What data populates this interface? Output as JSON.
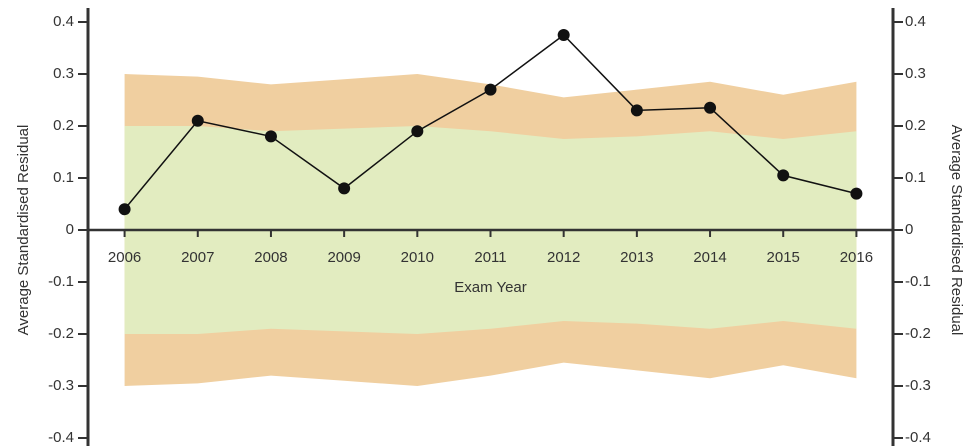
{
  "chart_data": {
    "type": "line",
    "xlabel": "Exam Year",
    "ylabel": "Average Standardised Residual",
    "y2label": "Average Standardised Residual",
    "x": [
      2006,
      2007,
      2008,
      2009,
      2010,
      2011,
      2012,
      2013,
      2014,
      2015,
      2016
    ],
    "xlim": [
      2005.5,
      2016.5
    ],
    "xticks": [
      2006,
      2007,
      2008,
      2009,
      2010,
      2011,
      2012,
      2013,
      2014,
      2015,
      2016
    ],
    "ylim": [
      -0.4,
      0.4
    ],
    "yticks": [
      0.4,
      0.3,
      0.2,
      0.1,
      0,
      -0.1,
      -0.2,
      -0.3,
      -0.4
    ],
    "y2lim": [
      -0.4,
      0.4
    ],
    "y2ticks": [
      0.4,
      0.3,
      0.2,
      0.1,
      0,
      -0.1,
      -0.2,
      -0.3,
      -0.4
    ],
    "bands": [
      {
        "color": "#f0cfa0",
        "upper": [
          0.3,
          0.295,
          0.28,
          0.29,
          0.3,
          0.28,
          0.255,
          0.27,
          0.285,
          0.26,
          0.285
        ],
        "lower": [
          -0.3,
          -0.295,
          -0.28,
          -0.29,
          -0.3,
          -0.28,
          -0.255,
          -0.27,
          -0.285,
          -0.26,
          -0.285
        ]
      },
      {
        "color": "#e2ecc0",
        "upper": [
          0.2,
          0.2,
          0.19,
          0.195,
          0.2,
          0.19,
          0.175,
          0.18,
          0.19,
          0.175,
          0.19
        ],
        "lower": [
          -0.2,
          -0.2,
          -0.19,
          -0.195,
          -0.2,
          -0.19,
          -0.175,
          -0.18,
          -0.19,
          -0.175,
          -0.19
        ]
      }
    ],
    "color": "#111111",
    "values": [
      0.04,
      0.21,
      0.18,
      0.08,
      0.19,
      0.27,
      0.375,
      0.23,
      0.235,
      0.105,
      0.07
    ]
  }
}
